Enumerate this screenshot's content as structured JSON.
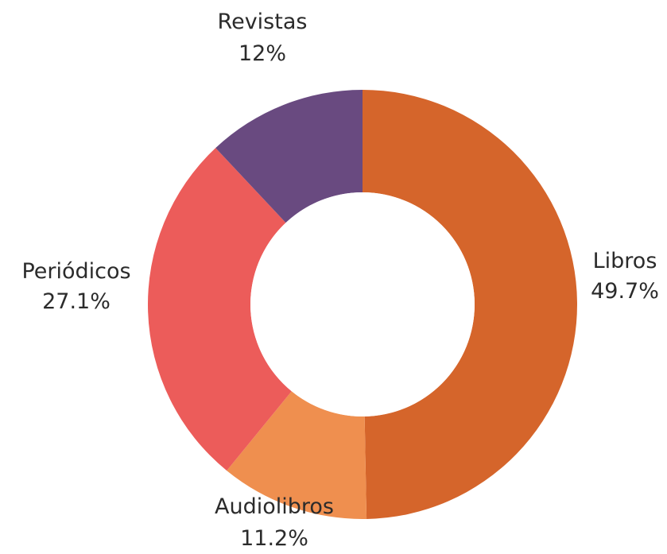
{
  "chart_data": {
    "type": "pie",
    "title": "",
    "slices": [
      {
        "label": "Libros",
        "value": 49.7,
        "value_label": "49.7%",
        "color": "#d5652b"
      },
      {
        "label": "Audiolibros",
        "value": 11.2,
        "value_label": "11.2%",
        "color": "#ef8f4f"
      },
      {
        "label": "Periódicos",
        "value": 27.1,
        "value_label": "27.1%",
        "color": "#ec5c5a"
      },
      {
        "label": "Revistas",
        "value": 12,
        "value_label": "12%",
        "color": "#694a80"
      }
    ],
    "start": "top",
    "direction": "clockwise",
    "legend": "none"
  }
}
